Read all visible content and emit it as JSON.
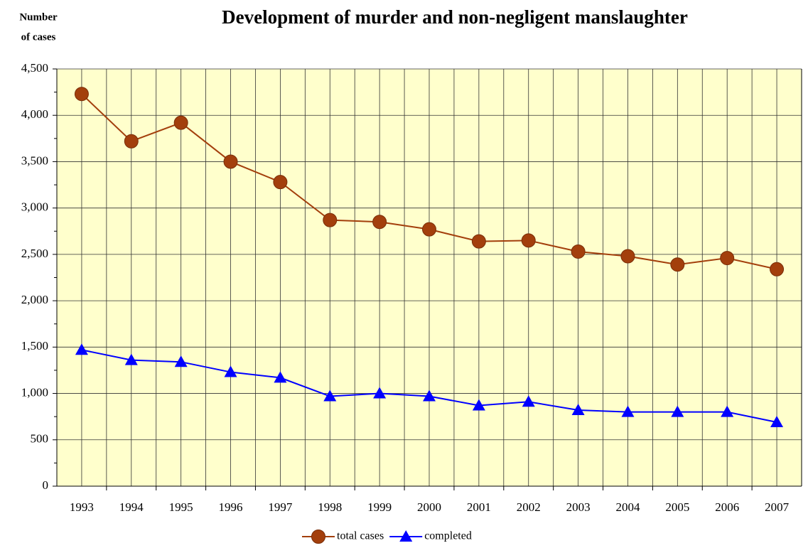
{
  "chart_data": {
    "type": "line",
    "title": "Development of murder and non-negligent manslaughter",
    "ylabel_lines": [
      "Number",
      "of cases"
    ],
    "categories": [
      "1993",
      "1994",
      "1995",
      "1996",
      "1997",
      "1998",
      "1999",
      "2000",
      "2001",
      "2002",
      "2003",
      "2004",
      "2005",
      "2006",
      "2007"
    ],
    "series": [
      {
        "name": "total cases",
        "color": "#a33f0c",
        "marker": "circle",
        "values": [
          4230,
          3720,
          3920,
          3500,
          3280,
          2870,
          2850,
          2770,
          2640,
          2650,
          2530,
          2480,
          2390,
          2460,
          2340
        ]
      },
      {
        "name": "completed",
        "color": "#0000ff",
        "marker": "triangle",
        "values": [
          1470,
          1360,
          1340,
          1230,
          1170,
          970,
          1000,
          970,
          870,
          910,
          820,
          800,
          800,
          800,
          690
        ]
      }
    ],
    "ylim": [
      0,
      4500
    ],
    "yticks": [
      0,
      500,
      {
        "value": 1000,
        "label": "1,000"
      },
      {
        "value": 1500,
        "label": "1,500"
      },
      {
        "value": 2000,
        "label": "2,000"
      },
      {
        "value": 2500,
        "label": "2,500"
      },
      {
        "value": 3000,
        "label": "3,000"
      },
      {
        "value": 3500,
        "label": "3,500"
      },
      {
        "value": 4000,
        "label": "4,000"
      },
      {
        "value": 4500,
        "label": "4,500"
      }
    ],
    "grid": true,
    "plot_background": "#ffffcc",
    "legend": "bottom"
  }
}
